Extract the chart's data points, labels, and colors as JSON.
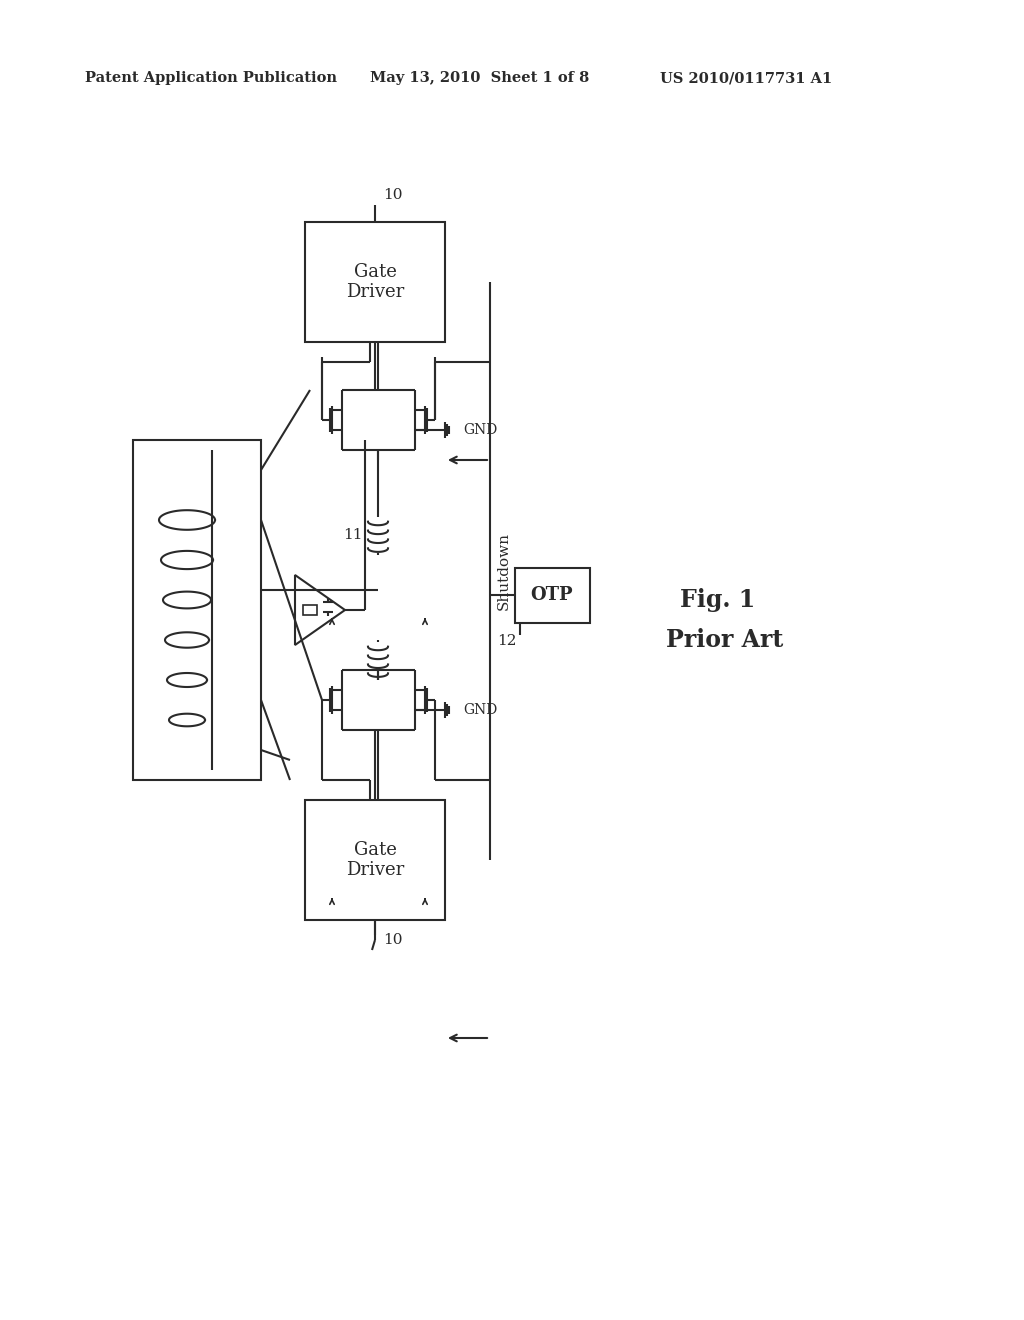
{
  "bg_color": "#ffffff",
  "line_color": "#2a2a2a",
  "header_left": "Patent Application Publication",
  "header_mid": "May 13, 2010  Sheet 1 of 8",
  "header_right": "US 2010/0117731 A1",
  "fig_label": "Fig. 1",
  "fig_sublabel": "Prior Art",
  "label_10_top": "10",
  "label_10_bot": "10",
  "label_11": "11",
  "label_12": "12",
  "label_gnd_top": "GND",
  "label_gnd_bot": "GND",
  "label_shutdown": "Shutdown",
  "label_otp": "OTP",
  "label_gate_driver": "Gate\nDriver",
  "schematic_scale": 1.0
}
